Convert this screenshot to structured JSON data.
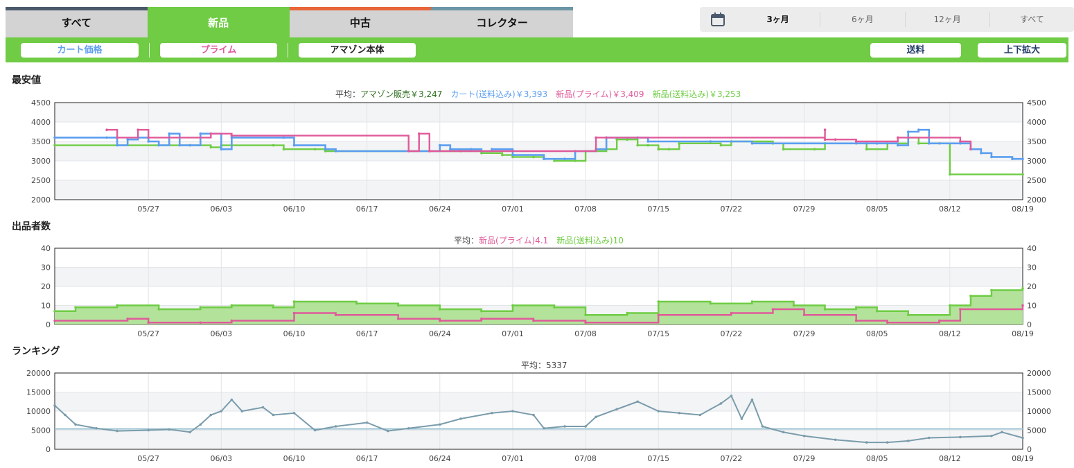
{
  "tabs": [
    {
      "label": "すべて",
      "stripe": "#4a5a6c",
      "active": false
    },
    {
      "label": "新品",
      "stripe": "#6fcc44",
      "active": true
    },
    {
      "label": "中古",
      "stripe": "#e8663a",
      "active": false
    },
    {
      "label": "コレクター",
      "stripe": "#6c96a6",
      "active": false
    }
  ],
  "range": {
    "icon": "calendar-icon",
    "options": [
      "3ヶ月",
      "6ヶ月",
      "12ヶ月",
      "すべて"
    ],
    "selected": "3ヶ月"
  },
  "filters": {
    "cart": {
      "label": "カート価格",
      "color": "#5b9ef0"
    },
    "prime": {
      "label": "プライム",
      "color": "#e05a9a"
    },
    "amazon": {
      "label": "アマゾン本体",
      "color": "#222222"
    },
    "shipping": {
      "label": "送料",
      "color": "#1f3b66"
    },
    "zoom": {
      "label": "上下拡大",
      "color": "#1f3b66"
    }
  },
  "colors": {
    "amazon": "#2e6e1e",
    "cart": "#5b9ef0",
    "prime": "#e05a9a",
    "new": "#6fcc44",
    "rank": "#7a9cab",
    "avg": "#9ec3d2"
  },
  "price": {
    "title": "最安値",
    "avg_prefix": "平均：",
    "avg_amazon": "アマゾン販売￥3,247",
    "avg_cart": "カート(送料込み)￥3,393",
    "avg_prime": "新品(プライム)￥3,409",
    "avg_new": "新品(送料込み)￥3,253"
  },
  "offers": {
    "title": "出品者数",
    "avg_prefix": "平均：",
    "avg_prime": "新品(プライム)4.1",
    "avg_new": "新品(送料込み)10"
  },
  "ranking": {
    "title": "ランキング",
    "avg_label": "平均：5337"
  },
  "chart_data": [
    {
      "type": "line",
      "title": "最安値",
      "x_dates": [
        "05/27",
        "06/03",
        "06/10",
        "06/17",
        "06/24",
        "07/01",
        "07/08",
        "07/15",
        "07/22",
        "07/29",
        "08/05",
        "08/12",
        "08/19"
      ],
      "ylim": [
        2000,
        4500
      ],
      "yticks": [
        2000,
        2500,
        3000,
        3500,
        4000,
        4500
      ],
      "x_start": "05/18",
      "x_end": "08/19",
      "series": [
        {
          "name": "新品(送料込み)",
          "key": "new",
          "points": [
            [
              "05/18",
              3400
            ],
            [
              "05/31",
              3400
            ],
            [
              "06/02",
              3350
            ],
            [
              "06/03",
              3400
            ],
            [
              "06/08",
              3400
            ],
            [
              "06/09",
              3300
            ],
            [
              "06/12",
              3300
            ],
            [
              "06/13",
              3250
            ],
            [
              "06/26",
              3250
            ],
            [
              "06/28",
              3200
            ],
            [
              "06/30",
              3150
            ],
            [
              "07/01",
              3100
            ],
            [
              "07/03",
              3100
            ],
            [
              "07/04",
              3050
            ],
            [
              "07/05",
              3000
            ],
            [
              "07/07",
              3000
            ],
            [
              "07/08",
              3250
            ],
            [
              "07/10",
              3300
            ],
            [
              "07/11",
              3550
            ],
            [
              "07/12",
              3550
            ],
            [
              "07/13",
              3400
            ],
            [
              "07/14",
              3400
            ],
            [
              "07/15",
              3300
            ],
            [
              "07/16",
              3300
            ],
            [
              "07/17",
              3450
            ],
            [
              "07/21",
              3400
            ],
            [
              "07/22",
              3500
            ],
            [
              "07/26",
              3450
            ],
            [
              "07/27",
              3300
            ],
            [
              "07/30",
              3300
            ],
            [
              "07/31",
              3450
            ],
            [
              "08/03",
              3450
            ],
            [
              "08/04",
              3300
            ],
            [
              "08/06",
              3450
            ],
            [
              "08/08",
              3600
            ],
            [
              "08/09",
              3450
            ],
            [
              "08/11",
              3450
            ],
            [
              "08/12",
              2650
            ],
            [
              "08/19",
              2650
            ]
          ]
        },
        {
          "name": "カート(送料込み)",
          "key": "cart",
          "points": [
            [
              "05/18",
              3600
            ],
            [
              "05/23",
              3600
            ],
            [
              "05/24",
              3400
            ],
            [
              "05/25",
              3550
            ],
            [
              "05/26",
              3600
            ],
            [
              "05/27",
              3500
            ],
            [
              "05/28",
              3400
            ],
            [
              "05/29",
              3700
            ],
            [
              "05/30",
              3400
            ],
            [
              "05/31",
              3400
            ],
            [
              "06/01",
              3700
            ],
            [
              "06/02",
              3700
            ],
            [
              "06/03",
              3300
            ],
            [
              "06/04",
              3600
            ],
            [
              "06/09",
              3600
            ],
            [
              "06/10",
              3400
            ],
            [
              "06/13",
              3300
            ],
            [
              "06/14",
              3250
            ],
            [
              "06/23",
              3250
            ],
            [
              "06/24",
              3400
            ],
            [
              "06/25",
              3300
            ],
            [
              "06/27",
              3300
            ],
            [
              "06/28",
              3250
            ],
            [
              "06/29",
              3300
            ],
            [
              "07/01",
              3150
            ],
            [
              "07/04",
              3050
            ],
            [
              "07/06",
              3050
            ],
            [
              "07/07",
              3250
            ],
            [
              "07/09",
              3300
            ],
            [
              "07/10",
              3600
            ],
            [
              "07/13",
              3600
            ],
            [
              "07/14",
              3500
            ],
            [
              "07/20",
              3500
            ],
            [
              "07/24",
              3450
            ],
            [
              "08/04",
              3450
            ],
            [
              "08/05",
              3450
            ],
            [
              "08/07",
              3400
            ],
            [
              "08/08",
              3750
            ],
            [
              "08/09",
              3800
            ],
            [
              "08/10",
              3450
            ],
            [
              "08/13",
              3450
            ],
            [
              "08/14",
              3300
            ],
            [
              "08/15",
              3200
            ],
            [
              "08/16",
              3100
            ],
            [
              "08/18",
              3050
            ],
            [
              "08/19",
              3050
            ]
          ]
        },
        {
          "name": "新品(プライム)",
          "key": "prime",
          "points": [
            [
              "05/23",
              3800
            ],
            [
              "05/24",
              3600
            ],
            [
              "05/26",
              3800
            ],
            [
              "05/27",
              3600
            ],
            [
              "06/02",
              3700
            ],
            [
              "06/04",
              3650
            ],
            [
              "06/21",
              3250
            ],
            [
              "06/22",
              3700
            ],
            [
              "06/23",
              3250
            ],
            [
              "07/09",
              3600
            ],
            [
              "07/10",
              3600
            ],
            [
              "07/31",
              3800
            ],
            [
              "07/31",
              3550
            ],
            [
              "08/01",
              3550
            ],
            [
              "08/03",
              3500
            ],
            [
              "08/07",
              3600
            ],
            [
              "08/13",
              3500
            ],
            [
              "08/14",
              3300
            ]
          ]
        }
      ]
    },
    {
      "type": "area",
      "title": "出品者数",
      "ylim": [
        0,
        40
      ],
      "yticks": [
        0,
        10,
        20,
        30,
        40
      ],
      "series": [
        {
          "name": "新品(送料込み)",
          "key": "new",
          "points": [
            [
              "05/18",
              7
            ],
            [
              "05/20",
              9
            ],
            [
              "05/24",
              10
            ],
            [
              "05/28",
              8
            ],
            [
              "06/01",
              9
            ],
            [
              "06/04",
              10
            ],
            [
              "06/08",
              9
            ],
            [
              "06/10",
              12
            ],
            [
              "06/16",
              11
            ],
            [
              "06/20",
              10
            ],
            [
              "06/24",
              8
            ],
            [
              "06/28",
              7
            ],
            [
              "07/01",
              10
            ],
            [
              "07/05",
              9
            ],
            [
              "07/08",
              5
            ],
            [
              "07/12",
              6
            ],
            [
              "07/15",
              12
            ],
            [
              "07/20",
              11
            ],
            [
              "07/24",
              12
            ],
            [
              "07/28",
              10
            ],
            [
              "07/31",
              8
            ],
            [
              "08/03",
              9
            ],
            [
              "08/05",
              7
            ],
            [
              "08/08",
              5
            ],
            [
              "08/12",
              10
            ],
            [
              "08/14",
              15
            ],
            [
              "08/16",
              18
            ],
            [
              "08/19",
              19
            ]
          ]
        },
        {
          "name": "新品(プライム)",
          "key": "prime",
          "points": [
            [
              "05/18",
              2
            ],
            [
              "05/25",
              3
            ],
            [
              "05/27",
              1
            ],
            [
              "06/01",
              1
            ],
            [
              "06/04",
              2
            ],
            [
              "06/10",
              6
            ],
            [
              "06/14",
              5
            ],
            [
              "06/20",
              3
            ],
            [
              "06/24",
              2
            ],
            [
              "06/28",
              3
            ],
            [
              "07/03",
              2
            ],
            [
              "07/08",
              1
            ],
            [
              "07/15",
              5
            ],
            [
              "07/22",
              6
            ],
            [
              "07/26",
              8
            ],
            [
              "07/29",
              5
            ],
            [
              "08/03",
              2
            ],
            [
              "08/06",
              1
            ],
            [
              "08/11",
              2
            ],
            [
              "08/13",
              8
            ],
            [
              "08/19",
              10
            ]
          ]
        }
      ]
    },
    {
      "type": "line",
      "title": "ランキング",
      "ylim": [
        0,
        20000
      ],
      "yticks": [
        0,
        5000,
        10000,
        15000,
        20000
      ],
      "average": 5337,
      "series": [
        {
          "name": "ランキング",
          "key": "rank",
          "points": [
            [
              "05/18",
              11500
            ],
            [
              "05/19",
              9000
            ],
            [
              "05/20",
              6500
            ],
            [
              "05/22",
              5500
            ],
            [
              "05/24",
              4800
            ],
            [
              "05/27",
              5000
            ],
            [
              "05/29",
              5200
            ],
            [
              "05/31",
              4500
            ],
            [
              "06/01",
              6500
            ],
            [
              "06/02",
              9000
            ],
            [
              "06/03",
              10000
            ],
            [
              "06/04",
              13000
            ],
            [
              "06/05",
              10000
            ],
            [
              "06/07",
              11000
            ],
            [
              "06/08",
              9000
            ],
            [
              "06/10",
              9500
            ],
            [
              "06/12",
              5000
            ],
            [
              "06/14",
              6000
            ],
            [
              "06/17",
              7000
            ],
            [
              "06/19",
              4800
            ],
            [
              "06/21",
              5500
            ],
            [
              "06/24",
              6500
            ],
            [
              "06/26",
              8000
            ],
            [
              "06/29",
              9500
            ],
            [
              "07/01",
              10000
            ],
            [
              "07/03",
              9000
            ],
            [
              "07/04",
              5500
            ],
            [
              "07/06",
              6000
            ],
            [
              "07/08",
              6000
            ],
            [
              "07/09",
              8500
            ],
            [
              "07/11",
              10500
            ],
            [
              "07/13",
              12500
            ],
            [
              "07/15",
              10000
            ],
            [
              "07/17",
              9500
            ],
            [
              "07/19",
              9000
            ],
            [
              "07/21",
              12000
            ],
            [
              "07/22",
              14000
            ],
            [
              "07/23",
              8000
            ],
            [
              "07/24",
              13000
            ],
            [
              "07/25",
              6000
            ],
            [
              "07/27",
              4500
            ],
            [
              "07/29",
              3500
            ],
            [
              "08/01",
              2500
            ],
            [
              "08/04",
              1800
            ],
            [
              "08/06",
              1800
            ],
            [
              "08/08",
              2200
            ],
            [
              "08/10",
              3000
            ],
            [
              "08/13",
              3200
            ],
            [
              "08/16",
              3500
            ],
            [
              "08/17",
              4500
            ],
            [
              "08/19",
              3000
            ]
          ]
        }
      ]
    }
  ]
}
